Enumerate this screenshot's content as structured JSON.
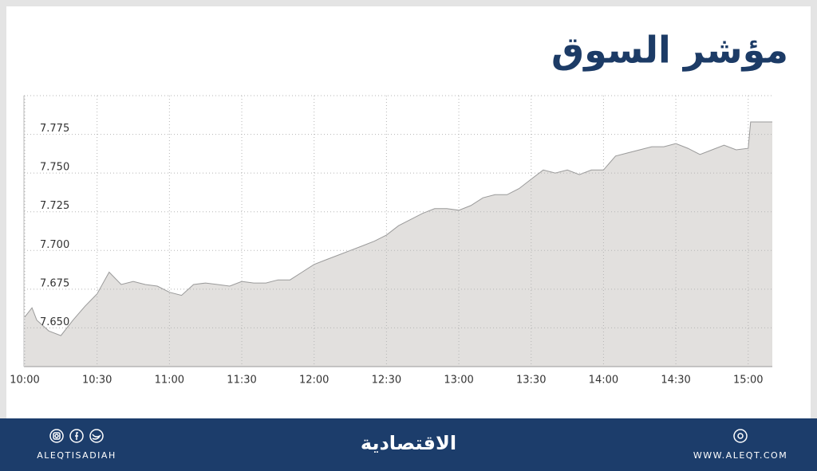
{
  "chart_data": {
    "type": "area",
    "title": "مؤشر السوق",
    "x": [
      "10:00",
      "10:03",
      "10:05",
      "10:10",
      "10:15",
      "10:20",
      "10:25",
      "10:30",
      "10:35",
      "10:40",
      "10:45",
      "10:50",
      "10:55",
      "11:00",
      "11:05",
      "11:10",
      "11:15",
      "11:20",
      "11:25",
      "11:30",
      "11:35",
      "11:40",
      "11:45",
      "11:50",
      "11:55",
      "12:00",
      "12:05",
      "12:10",
      "12:15",
      "12:20",
      "12:25",
      "12:30",
      "12:35",
      "12:40",
      "12:45",
      "12:50",
      "12:55",
      "13:00",
      "13:05",
      "13:10",
      "13:15",
      "13:20",
      "13:25",
      "13:30",
      "13:35",
      "13:40",
      "13:45",
      "13:50",
      "13:55",
      "14:00",
      "14:05",
      "14:10",
      "14:15",
      "14:20",
      "14:25",
      "14:30",
      "14:35",
      "14:40",
      "14:45",
      "14:50",
      "14:55",
      "15:00",
      "15:01",
      "15:10"
    ],
    "values": [
      7.657,
      7.663,
      7.655,
      7.648,
      7.645,
      7.655,
      7.664,
      7.672,
      7.686,
      7.678,
      7.68,
      7.678,
      7.677,
      7.673,
      7.671,
      7.678,
      7.679,
      7.678,
      7.677,
      7.68,
      7.679,
      7.679,
      7.681,
      7.681,
      7.686,
      7.691,
      7.694,
      7.697,
      7.7,
      7.703,
      7.706,
      7.71,
      7.716,
      7.72,
      7.724,
      7.727,
      7.727,
      7.726,
      7.729,
      7.734,
      7.736,
      7.736,
      7.74,
      7.746,
      7.752,
      7.75,
      7.752,
      7.749,
      7.752,
      7.752,
      7.761,
      7.763,
      7.765,
      7.767,
      7.767,
      7.769,
      7.766,
      7.762,
      7.765,
      7.768,
      7.765,
      7.766,
      7.783,
      7.783
    ],
    "color": "#e2e0de",
    "line_color": "#9a9a9a",
    "xlim": [
      "10:00",
      "15:10"
    ],
    "xticks": [
      "10:00",
      "10:30",
      "11:00",
      "11:30",
      "12:00",
      "12:30",
      "13:00",
      "13:30",
      "14:00",
      "14:30",
      "15:00"
    ],
    "ylim": [
      7.625,
      7.8
    ],
    "yticks": [
      {
        "value": 7.65,
        "label": "7.650"
      },
      {
        "value": 7.675,
        "label": "7.675"
      },
      {
        "value": 7.7,
        "label": "7.700"
      },
      {
        "value": 7.725,
        "label": "7.725"
      },
      {
        "value": 7.75,
        "label": "7.750"
      },
      {
        "value": 7.775,
        "label": "7.775"
      }
    ],
    "grid": true
  },
  "footer": {
    "handle": "ALEQTISADIAH",
    "logo": "الاقتصادية",
    "website": "WWW.ALEQT.COM"
  }
}
